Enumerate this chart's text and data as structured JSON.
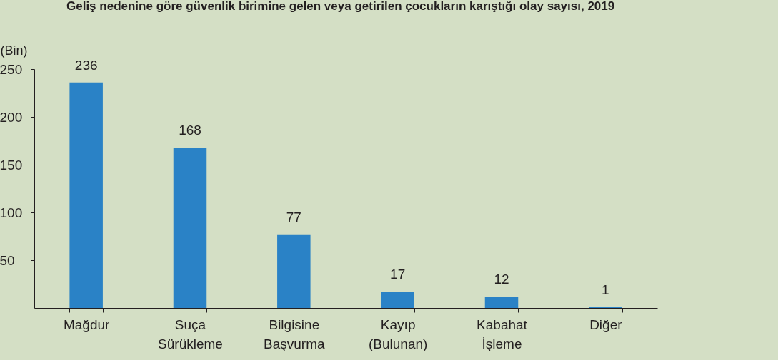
{
  "chart_data": {
    "type": "bar",
    "title": "Geliş nedenine göre güvenlik birimine gelen veya getirilen çocukların karıştığı olay sayısı, 2019",
    "ylabel": "(Bin)",
    "categories": [
      "Mağdur",
      "Suça Sürükleme",
      "Bilgisine Başvurma",
      "Kayıp (Bulunan)",
      "Kabahat İşleme",
      "Diğer"
    ],
    "values": [
      236,
      168,
      77,
      17,
      12,
      1
    ],
    "color": "#2a82c6",
    "ylim": [
      0,
      250
    ],
    "yticks": [
      50,
      100,
      150,
      200,
      250
    ],
    "grid": false,
    "data_labels": true
  }
}
